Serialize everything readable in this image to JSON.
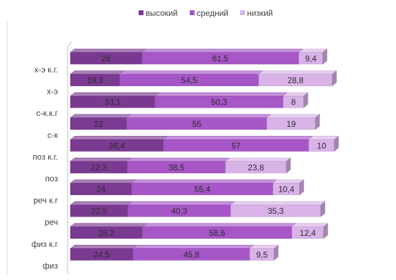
{
  "chart_data": {
    "type": "bar",
    "orientation": "horizontal",
    "stacked": true,
    "style": "3d",
    "legend_position": "top",
    "grid": false,
    "categories": [
      "физ",
      "физ к.г",
      "реч",
      "реч к.г",
      "поз",
      "поз к.г.",
      "с-к",
      "с-к.к.г",
      "х-э",
      "х-э к.г."
    ],
    "series": [
      {
        "name": "высокий",
        "color": "#7b3a92",
        "values": [
          24.5,
          28.2,
          22.5,
          24,
          22.3,
          36.4,
          22,
          33.1,
          19.3,
          28
        ]
      },
      {
        "name": "средний",
        "color": "#a656c7",
        "values": [
          45.8,
          58.6,
          40.3,
          55.4,
          38.5,
          57,
          55,
          50.3,
          54.5,
          61.5
        ]
      },
      {
        "name": "низкий",
        "color": "#d9b3e8",
        "values": [
          9.5,
          12.4,
          35.3,
          10.4,
          23.8,
          10,
          19,
          8,
          28.8,
          9.4
        ]
      }
    ],
    "value_labels": [
      [
        "24,5",
        "28,2",
        "22,5",
        "24",
        "22,3",
        "36,4",
        "22",
        "33,1",
        "19,3",
        "28"
      ],
      [
        "45,8",
        "58,6",
        "40,3",
        "55,4",
        "38,5",
        "57",
        "55",
        "50,3",
        "54,5",
        "61,5"
      ],
      [
        "9,5",
        "12,4",
        "35,3",
        "10,4",
        "23,8",
        "10",
        "19",
        "8",
        "28,8",
        "9,4"
      ]
    ]
  }
}
